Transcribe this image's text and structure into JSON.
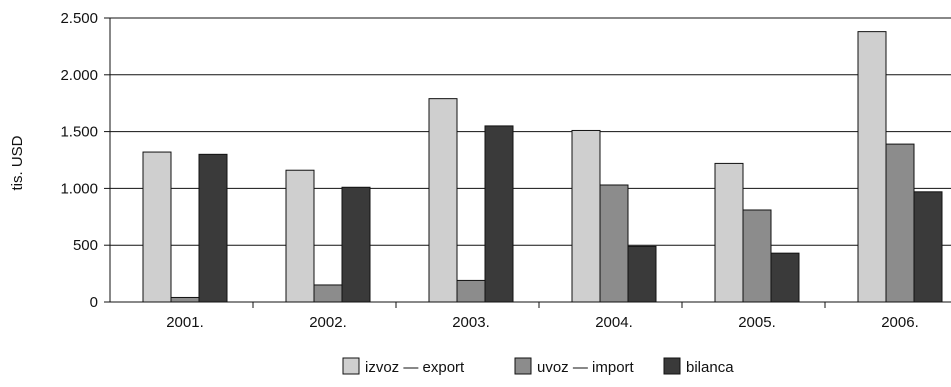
{
  "chart_data": {
    "type": "bar",
    "title": "",
    "xlabel": "",
    "ylabel": "tis. USD",
    "ylim": [
      0,
      2500
    ],
    "yticks": [
      0,
      500,
      1000,
      1500,
      2000,
      2500
    ],
    "ytick_labels": [
      "0",
      "500",
      "1.000",
      "1.500",
      "2.000",
      "2.500"
    ],
    "categories": [
      "2001.",
      "2002.",
      "2003.",
      "2004.",
      "2005.",
      "2006."
    ],
    "series": [
      {
        "name": "izvoz — export",
        "color": "#cfcfcf",
        "values": [
          1320,
          1160,
          1790,
          1510,
          1220,
          2380
        ]
      },
      {
        "name": "uvoz — import",
        "color": "#8c8c8c",
        "values": [
          40,
          150,
          190,
          1030,
          810,
          1390
        ]
      },
      {
        "name": "bilanca",
        "color": "#3a3a3a",
        "values": [
          1300,
          1010,
          1550,
          490,
          430,
          970
        ]
      }
    ],
    "grid": true,
    "legend_position": "bottom"
  }
}
